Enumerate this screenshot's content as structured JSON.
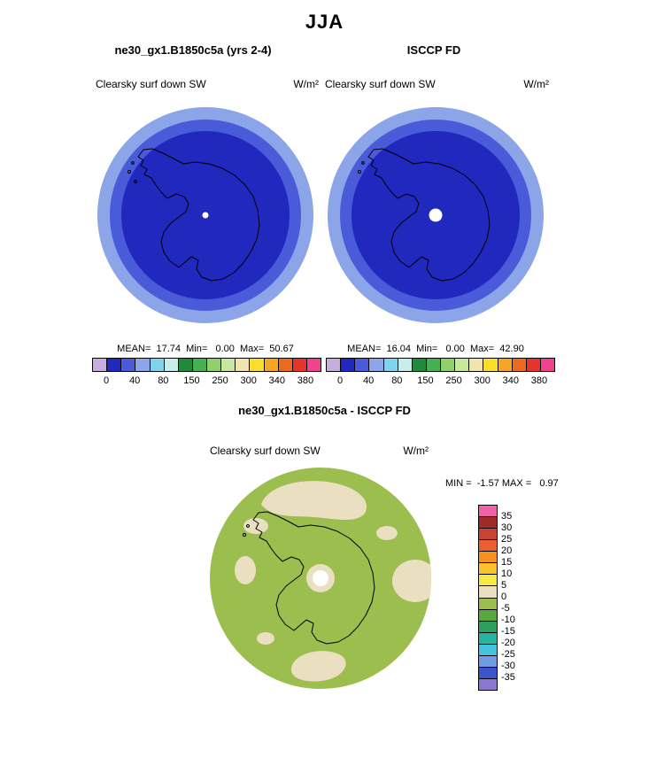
{
  "title": "JJA",
  "panels": [
    {
      "title": "ne30_gx1.B1850c5a (yrs 2-4)",
      "subtitle": "Clearsky surf down SW",
      "units": "W/m²",
      "stats": "MEAN=  17.74  Min=   0.00  Max=  50.67"
    },
    {
      "title": "ISCCP FD",
      "subtitle": "Clearsky surf down SW",
      "units": "W/m²",
      "stats": "MEAN=  16.04  Min=   0.00  Max=  42.90"
    }
  ],
  "diff": {
    "title": "ne30_gx1.B1850c5a - ISCCP FD",
    "subtitle": "Clearsky surf down SW",
    "units": "W/m²",
    "minmax": "MIN =  -1.57 MAX =   0.97"
  },
  "colorbar_top": {
    "tick_labels": [
      "0",
      "40",
      "80",
      "150",
      "250",
      "300",
      "340",
      "380"
    ],
    "colors": [
      "#C8AEDC",
      "#2128BE",
      "#4A5BD9",
      "#8CA5E8",
      "#7FD4EC",
      "#C6EDEA",
      "#1F8A3C",
      "#46B050",
      "#8FD06C",
      "#C8E8A0",
      "#EFE3B0",
      "#F9DE2C",
      "#F5A623",
      "#EE6B1E",
      "#E5342B",
      "#F0428E"
    ]
  },
  "colorbar_diff": {
    "labels": [
      "35",
      "30",
      "25",
      "20",
      "15",
      "10",
      "5",
      "0",
      "-5",
      "-10",
      "-15",
      "-20",
      "-25",
      "-30",
      "-35"
    ],
    "colors": [
      "#F061A8",
      "#9E2B25",
      "#C74432",
      "#EC5F33",
      "#F59120",
      "#FCC229",
      "#F7E843",
      "#EADFC0",
      "#9CBE4E",
      "#58A83C",
      "#2F9E5C",
      "#2AB3A0",
      "#45C2DC",
      "#6E9BE4",
      "#3B55C8",
      "#8A78D0"
    ]
  },
  "colors": {
    "ring_outer": "#8CA5E8",
    "ring_mid": "#4A5BD9",
    "map_dark": "#2128BE",
    "diff_green": "#9CBE4E",
    "diff_tan": "#EADFC0",
    "coast": "#000000",
    "pole": "#FFFFFF"
  },
  "chart_data": [
    {
      "type": "heatmap",
      "title": "ne30_gx1.B1850c5a (yrs 2-4)",
      "subtitle": "Clearsky surf down SW",
      "units": "W/m²",
      "projection": "south-polar map of Antarctica",
      "stats": {
        "mean": 17.74,
        "min": 0.0,
        "max": 50.67
      },
      "levels_labeled": [
        0,
        40,
        80,
        150,
        250,
        300,
        340,
        380
      ],
      "legend_position": "bottom",
      "notes": "dark blue interior (low SW near 0) with medium and light blue concentric rings toward map edge (values up to ~50)"
    },
    {
      "type": "heatmap",
      "title": "ISCCP FD",
      "subtitle": "Clearsky surf down SW",
      "units": "W/m²",
      "projection": "south-polar map of Antarctica",
      "stats": {
        "mean": 16.04,
        "min": 0.0,
        "max": 42.9
      },
      "levels_labeled": [
        0,
        40,
        80,
        150,
        250,
        300,
        340,
        380
      ],
      "legend_position": "bottom",
      "notes": "same ring pattern as model panel; larger white pole hole"
    },
    {
      "type": "heatmap",
      "title": "ne30_gx1.B1850c5a - ISCCP FD",
      "subtitle": "Clearsky surf down SW",
      "units": "W/m²",
      "projection": "south-polar map of Antarctica",
      "stats": {
        "min": -1.57,
        "max": 0.97
      },
      "levels_labeled": [
        -35,
        -30,
        -25,
        -20,
        -15,
        -10,
        -5,
        0,
        5,
        10,
        15,
        20,
        25,
        30,
        35
      ],
      "legend_position": "right",
      "notes": "field lies within -5..0 (green) and 0..5 (tan) bins only; tan patches scattered over green background, tan ring with white hole at pole"
    }
  ]
}
